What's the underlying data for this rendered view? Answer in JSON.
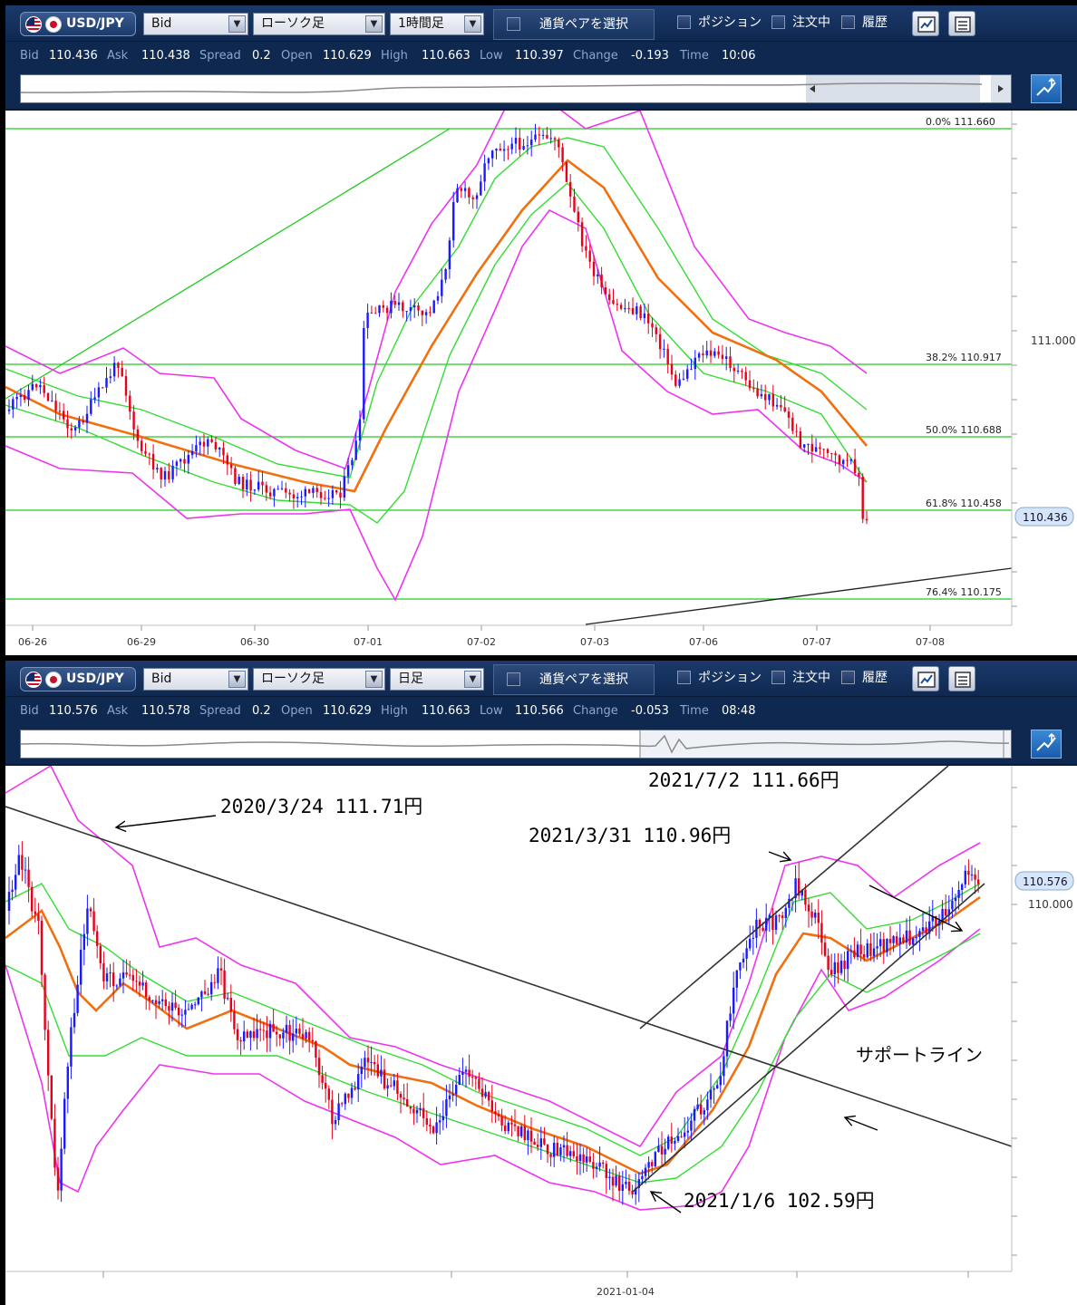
{
  "panels": [
    {
      "toolbar": {
        "pair": "USD/JPY",
        "price_type": "Bid",
        "chart_type": "ローソク足",
        "timeframe": "1時間足",
        "select_pair": "通貨ペアを選択",
        "positions": "ポジション",
        "orders": "注文中",
        "history": "履歴"
      },
      "info": {
        "bid_label": "Bid",
        "bid": "110.436",
        "ask_label": "Ask",
        "ask": "110.438",
        "spread_label": "Spread",
        "spread": "0.2",
        "open_label": "Open",
        "open": "110.629",
        "high_label": "High",
        "high": "110.663",
        "low_label": "Low",
        "low": "110.397",
        "change_label": "Change",
        "change": "-0.193",
        "time_label": "Time",
        "time": "10:06"
      },
      "price_tag": "110.436",
      "y_tick": "111.000",
      "fib_levels": [
        {
          "label": "0.0%",
          "value": "111.660"
        },
        {
          "label": "38.2%",
          "value": "110.917"
        },
        {
          "label": "50.0%",
          "value": "110.688"
        },
        {
          "label": "61.8%",
          "value": "110.458"
        },
        {
          "label": "76.4%",
          "value": "110.175"
        }
      ],
      "x_ticks": [
        "06-26",
        "06-29",
        "06-30",
        "07-01",
        "07-02",
        "07-03",
        "07-06",
        "07-07",
        "07-08"
      ],
      "colors": {
        "up": "#1a1aff",
        "down": "#e6001a",
        "ma": "#f07010",
        "band1": "#33dd33",
        "band2": "#ee33ee",
        "fib": "#22cc22",
        "trend": "#222222"
      }
    },
    {
      "toolbar": {
        "pair": "USD/JPY",
        "price_type": "Bid",
        "chart_type": "ローソク足",
        "timeframe": "日足",
        "select_pair": "通貨ペアを選択",
        "positions": "ポジション",
        "orders": "注文中",
        "history": "履歴"
      },
      "info": {
        "bid_label": "Bid",
        "bid": "110.576",
        "ask_label": "Ask",
        "ask": "110.578",
        "spread_label": "Spread",
        "spread": "0.2",
        "open_label": "Open",
        "open": "110.629",
        "high_label": "High",
        "high": "110.663",
        "low_label": "Low",
        "low": "110.566",
        "change_label": "Change",
        "change": "-0.053",
        "time_label": "Time",
        "time": "08:48"
      },
      "price_tag": "110.576",
      "y_tick": "110.000",
      "x_tick": "2021-01-04",
      "annotations": {
        "a2020": "2020/3/24  111.71円",
        "a0331": "2021/3/31  110.96円",
        "a0702": "2021/7/2  111.66円",
        "a0106": "2021/1/6  102.59円",
        "support": "サポートライン"
      }
    }
  ]
}
